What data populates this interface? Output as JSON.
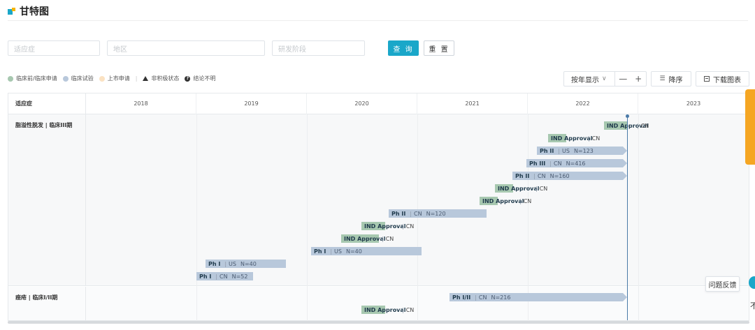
{
  "page": {
    "title": "甘特图"
  },
  "filters": {
    "indication_placeholder": "适应症",
    "region_placeholder": "地区",
    "stage_placeholder": "研发阶段",
    "query_label": "查 询",
    "reset_label": "重 置"
  },
  "legend": {
    "items": [
      {
        "label": "临床前/临床申请",
        "color": "#a7c8b0"
      },
      {
        "label": "临床试验",
        "color": "#b8c8db"
      },
      {
        "label": "上市申请",
        "color": "#fbe2c2"
      }
    ],
    "separator": "|",
    "inactive_label": "非积极状态",
    "unclear_label": "结论不明"
  },
  "controls": {
    "view_label": "按年显示",
    "zoom_out": "—",
    "zoom_in": "+",
    "sort_label": "降序",
    "download_label": "下载图表"
  },
  "gantt": {
    "column_header": "适应症",
    "years": [
      "2018",
      "2019",
      "2020",
      "2021",
      "2022",
      "2023"
    ],
    "rows": [
      {
        "label": "脂溢性脱发 | 临床III期",
        "bars": [
          {
            "type": "approval",
            "phase": "IND Approval",
            "location": "CN"
          },
          {
            "type": "approval",
            "phase": "IND Approval",
            "location": "CN"
          },
          {
            "type": "trial",
            "phase": "Ph II",
            "location": "US",
            "n": "N=123"
          },
          {
            "type": "trial",
            "phase": "Ph III",
            "location": "CN",
            "n": "N=416"
          },
          {
            "type": "trial",
            "phase": "Ph II",
            "location": "CN",
            "n": "N=160"
          },
          {
            "type": "approval",
            "phase": "IND Approval",
            "location": "CN"
          },
          {
            "type": "approval",
            "phase": "IND Approval",
            "location": "CN"
          },
          {
            "type": "trial",
            "phase": "Ph II",
            "location": "CN",
            "n": "N=120"
          },
          {
            "type": "approval",
            "phase": "IND Approval",
            "location": "CN"
          },
          {
            "type": "approval",
            "phase": "IND Approval",
            "location": "CN"
          },
          {
            "type": "trial",
            "phase": "Ph I",
            "location": "US",
            "n": "N=40"
          },
          {
            "type": "trial",
            "phase": "Ph I",
            "location": "US",
            "n": "N=40"
          },
          {
            "type": "trial",
            "phase": "Ph I",
            "location": "CN",
            "n": "N=52"
          }
        ]
      },
      {
        "label": "痤疮 | 临床I/II期",
        "bars": [
          {
            "type": "trial",
            "phase": "Ph I/II",
            "location": "CN",
            "n": "N=216"
          },
          {
            "type": "approval",
            "phase": "IND Approval",
            "location": "CN"
          }
        ]
      }
    ]
  },
  "widgets": {
    "feedback_label": "问题反馈",
    "edge_char": "不"
  }
}
